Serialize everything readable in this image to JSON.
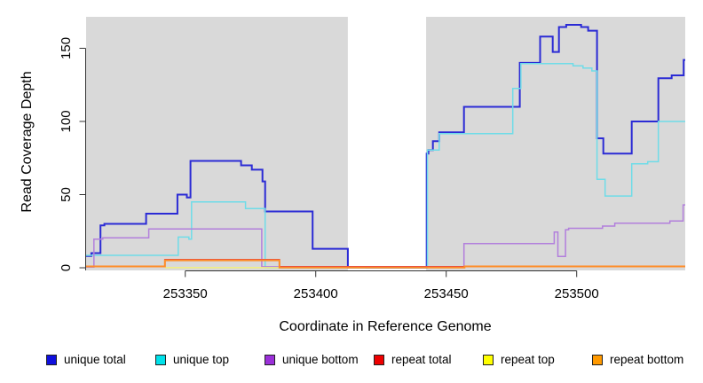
{
  "chart_data": {
    "type": "line",
    "subtype": "step-coverage-plot",
    "title": "",
    "xlabel": "Coordinate in Reference Genome",
    "ylabel": "Read Coverage Depth",
    "x_ticks": [
      253350,
      253400,
      253450,
      253500
    ],
    "y_ticks": [
      0,
      50,
      100,
      150
    ],
    "xlim": [
      253312,
      253541.6
    ],
    "ylim": [
      -1.8,
      174.5
    ],
    "grid": false,
    "legend_position": "bottom",
    "band_color": "#d9d9d9",
    "band_y_top": 171.5,
    "background_bands": [
      {
        "x0": 253312,
        "x1": 253412.3
      },
      {
        "x0": 253442.3,
        "x1": 253541.6
      }
    ],
    "axis_color": "#333333",
    "series": [
      {
        "name": "unique total",
        "color": "#2b2bd5",
        "legend_color": "#1010dd",
        "width": 2,
        "points": [
          [
            253312,
            8
          ],
          [
            253314,
            10
          ],
          [
            253317.5,
            29
          ],
          [
            253319,
            30
          ],
          [
            253335,
            37
          ],
          [
            253347,
            50
          ],
          [
            253350.6,
            48
          ],
          [
            253352,
            73
          ],
          [
            253371.4,
            70
          ],
          [
            253375.5,
            67
          ],
          [
            253379.6,
            59
          ],
          [
            253380.6,
            38.5
          ],
          [
            253398.8,
            13
          ],
          [
            253412.3,
            0
          ],
          [
            253442.5,
            78
          ],
          [
            253443.2,
            80.5
          ],
          [
            253444.9,
            86.5
          ],
          [
            253447.3,
            92.5
          ],
          [
            253456.8,
            110
          ],
          [
            253478.2,
            140
          ],
          [
            253486,
            158
          ],
          [
            253490.8,
            147.5
          ],
          [
            253493.2,
            164.5
          ],
          [
            253496,
            166
          ],
          [
            253501.7,
            164.5
          ],
          [
            253504.4,
            162
          ],
          [
            253507.8,
            88.5
          ],
          [
            253510.2,
            78
          ],
          [
            253521.1,
            100
          ],
          [
            253531.3,
            129.5
          ],
          [
            253536.4,
            131.5
          ],
          [
            253541,
            142
          ]
        ]
      },
      {
        "name": "unique top",
        "color": "#6fdce8",
        "legend_color": "#00e1ea",
        "width": 1.5,
        "points": [
          [
            253312,
            8.5
          ],
          [
            253347.3,
            21
          ],
          [
            253351.4,
            19.5
          ],
          [
            253352.4,
            45
          ],
          [
            253373.1,
            40.5
          ],
          [
            253380.6,
            0
          ],
          [
            253442.8,
            80.5
          ],
          [
            253447.3,
            91.6
          ],
          [
            253475.5,
            122.5
          ],
          [
            253478.6,
            139.5
          ],
          [
            253498.6,
            138
          ],
          [
            253502.4,
            136.5
          ],
          [
            253505.8,
            134.5
          ],
          [
            253507.8,
            60.5
          ],
          [
            253510.9,
            49
          ],
          [
            253521.1,
            71
          ],
          [
            253527.2,
            72.5
          ],
          [
            253531.3,
            100
          ]
        ]
      },
      {
        "name": "unique bottom",
        "color": "#b27fdc",
        "legend_color": "#9b30d9",
        "width": 1.5,
        "points": [
          [
            253312,
            0.5
          ],
          [
            253315,
            19.5
          ],
          [
            253318.4,
            20.5
          ],
          [
            253336,
            26.5
          ],
          [
            253379.3,
            0.7
          ],
          [
            253456.8,
            16.5
          ],
          [
            253491.4,
            24.4
          ],
          [
            253492.8,
            7.7
          ],
          [
            253495.7,
            26
          ],
          [
            253496.9,
            27
          ],
          [
            253509.9,
            28.5
          ],
          [
            253514.6,
            30.5
          ],
          [
            253535.7,
            32
          ],
          [
            253540.8,
            43
          ]
        ]
      },
      {
        "name": "repeat total",
        "color": "#e04048",
        "legend_color": "#ee0000",
        "width": 1.5,
        "points": [
          [
            253312,
            0.8
          ],
          [
            253342.2,
            5.6
          ],
          [
            253386.1,
            0.8
          ]
        ]
      },
      {
        "name": "repeat top",
        "color": "#f3ef7d",
        "legend_color": "#ffff00",
        "width": 1.5,
        "x_end": 253419,
        "points": [
          [
            253342.2,
            0.1
          ]
        ]
      },
      {
        "name": "repeat bottom",
        "color": "#ff8c26",
        "legend_color": "#ff9900",
        "width": 2,
        "points": [
          [
            253312,
            0.9
          ],
          [
            253342.2,
            5.1
          ],
          [
            253386.1,
            0.2
          ],
          [
            253457,
            0.9
          ]
        ]
      }
    ]
  }
}
